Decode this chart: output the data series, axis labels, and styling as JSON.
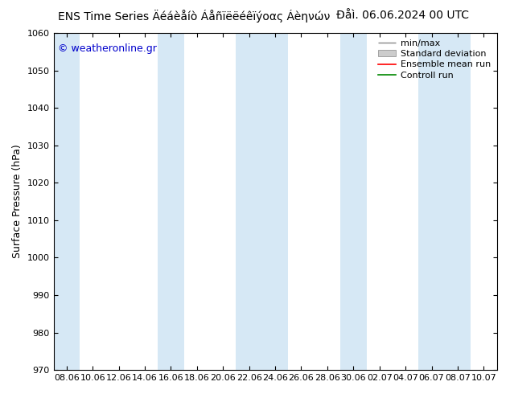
{
  "title_main": "ENS Time Series Äéáèåíò Áåñïëëéêïýοας Áèηνών",
  "title_date": "Đåì. 06.06.2024 00 UTC",
  "ylabel": "Surface Pressure (hPa)",
  "watermark": "© weatheronline.gr",
  "ylim": [
    970,
    1060
  ],
  "yticks": [
    970,
    980,
    990,
    1000,
    1010,
    1020,
    1030,
    1040,
    1050,
    1060
  ],
  "xtick_labels": [
    "08.06",
    "10.06",
    "12.06",
    "14.06",
    "16.06",
    "18.06",
    "20.06",
    "22.06",
    "24.06",
    "26.06",
    "28.06",
    "30.06",
    "02.07",
    "04.07",
    "06.07",
    "08.07",
    "10.07"
  ],
  "band_color": "#d6e8f5",
  "background_color": "#ffffff",
  "title_fontsize": 10,
  "label_fontsize": 9,
  "tick_fontsize": 8,
  "watermark_color": "#0000cc",
  "watermark_fontsize": 9,
  "legend_fontsize": 8,
  "band_indices": [
    0,
    4,
    7,
    8,
    11,
    14,
    15
  ],
  "figsize": [
    6.34,
    4.9
  ],
  "dpi": 100
}
